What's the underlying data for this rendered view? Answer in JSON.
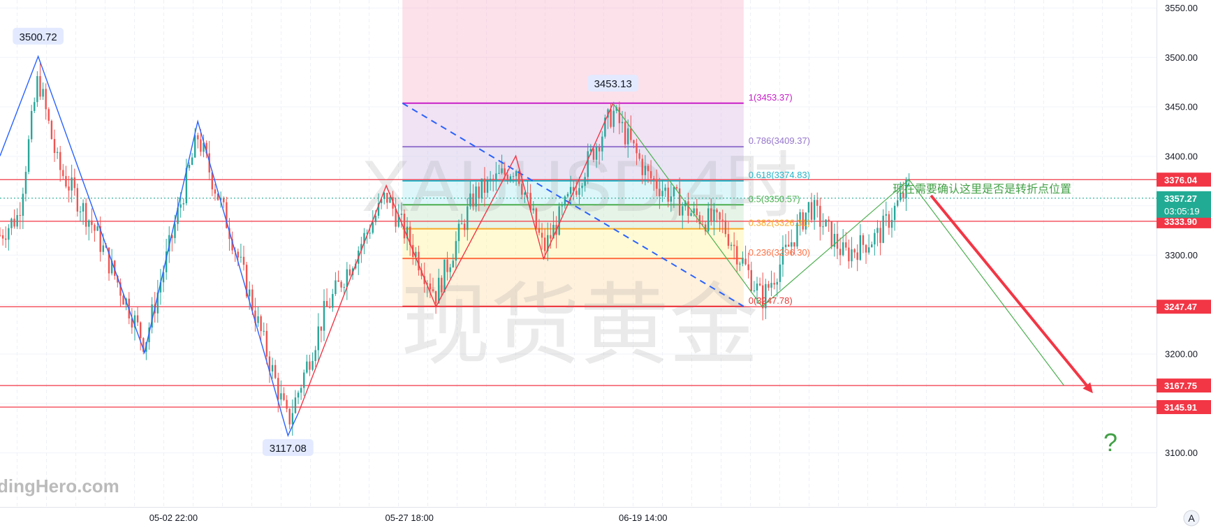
{
  "chart_data": {
    "type": "candlestick",
    "symbol_watermark": "XAUUSD,4时",
    "name_watermark": "现货黄金",
    "brand_watermark": "dingHero.com",
    "x_tick_labels": [
      "05-02 22:00",
      "05-27 18:00",
      "06-19 14:00"
    ],
    "y_ticks": [
      3100,
      3150,
      3200,
      3250,
      3300,
      3350,
      3400,
      3450,
      3500,
      3550
    ],
    "y_tick_labels": [
      "3100.00",
      "3150.00",
      "3200.00",
      "3250.00",
      "3300.00",
      "3350.00",
      "3400.00",
      "3450.00",
      "3500.00",
      "3550.00"
    ],
    "ylim": [
      3092,
      3556
    ],
    "grid": true,
    "current_price": {
      "value": 3357.27,
      "label": "3357.27",
      "countdown": "03:05:19",
      "color": "#22ab94"
    },
    "corner_button": "A",
    "horizontal_levels": [
      {
        "value": 3376.04,
        "label": "3376.04"
      },
      {
        "value": 3333.9,
        "label": "3333.90"
      },
      {
        "value": 3247.47,
        "label": "3247.47"
      },
      {
        "value": 3167.75,
        "label": "3167.75"
      },
      {
        "value": 3145.91,
        "label": "3145.91"
      }
    ],
    "extreme_labels": [
      {
        "value": 3500.72,
        "label": "3500.72",
        "kind": "high"
      },
      {
        "value": 3117.08,
        "label": "3117.08",
        "kind": "low"
      },
      {
        "value": 3453.13,
        "label": "3453.13",
        "kind": "high"
      }
    ],
    "fibonacci": {
      "high": 3453.37,
      "low": 3247.78,
      "levels": [
        {
          "ratio": 1,
          "price": 3453.37,
          "label": "1(3453.37)",
          "color": "#c71ec7"
        },
        {
          "ratio": 0.786,
          "price": 3409.37,
          "label": "0.786(3409.37)",
          "color": "#9575cd"
        },
        {
          "ratio": 0.618,
          "price": 3374.83,
          "label": "0.618(3374.83)",
          "color": "#26b5c9"
        },
        {
          "ratio": 0.5,
          "price": 3350.57,
          "label": "0.5(3350.57)",
          "color": "#4caf50"
        },
        {
          "ratio": 0.382,
          "price": 3326.31,
          "label": "0.382(3326.31)",
          "color": "#f9a825"
        },
        {
          "ratio": 0.236,
          "price": 3296.3,
          "label": "0.236(3296.30)",
          "color": "#ff7043"
        },
        {
          "ratio": 0,
          "price": 3247.78,
          "label": "0(3247.78)",
          "color": "#e53935"
        }
      ]
    },
    "annotation": "现在需要确认这里是否是转折点位置",
    "question_mark": "?",
    "wave_blue": [
      [
        0.0,
        3400
      ],
      [
        0.033,
        3500.72
      ],
      [
        0.125,
        3201
      ],
      [
        0.171,
        3435
      ],
      [
        0.249,
        3117.08
      ],
      [
        0.258,
        3140
      ]
    ],
    "wave_red": [
      [
        0.258,
        3140
      ],
      [
        0.334,
        3370
      ],
      [
        0.377,
        3247.47
      ],
      [
        0.446,
        3400
      ],
      [
        0.47,
        3296
      ],
      [
        0.53,
        3453.13
      ]
    ],
    "wave_green": [
      [
        0.53,
        3453.13
      ],
      [
        0.659,
        3247.47
      ],
      [
        0.786,
        3376.04
      ],
      [
        0.92,
        3167.75
      ]
    ],
    "projection_arrow": [
      [
        0.805,
        3360
      ],
      [
        0.945,
        3160
      ]
    ],
    "fib_diagonal": [
      [
        0.348,
        3453.37
      ],
      [
        0.643,
        3247.78
      ]
    ],
    "candles": {
      "seed": 7,
      "count": 318,
      "anchors": [
        [
          0.0,
          3320
        ],
        [
          0.016,
          3340
        ],
        [
          0.033,
          3480
        ],
        [
          0.05,
          3390
        ],
        [
          0.08,
          3330
        ],
        [
          0.125,
          3210
        ],
        [
          0.171,
          3420
        ],
        [
          0.2,
          3320
        ],
        [
          0.249,
          3130
        ],
        [
          0.28,
          3240
        ],
        [
          0.334,
          3360
        ],
        [
          0.377,
          3260
        ],
        [
          0.41,
          3360
        ],
        [
          0.446,
          3390
        ],
        [
          0.47,
          3305
        ],
        [
          0.53,
          3445
        ],
        [
          0.56,
          3380
        ],
        [
          0.6,
          3340
        ],
        [
          0.625,
          3330
        ],
        [
          0.659,
          3255
        ],
        [
          0.7,
          3350
        ],
        [
          0.73,
          3300
        ],
        [
          0.76,
          3320
        ],
        [
          0.786,
          3370
        ]
      ]
    }
  }
}
